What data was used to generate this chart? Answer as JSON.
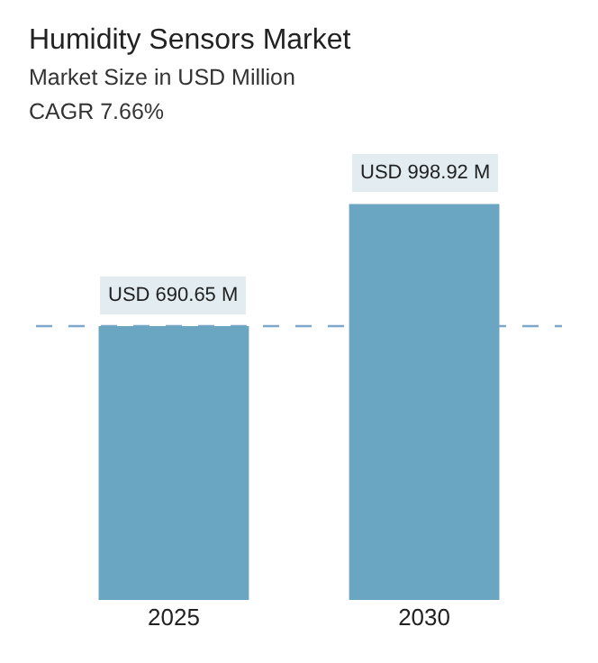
{
  "chart_data": {
    "type": "bar",
    "title": "Humidity Sensors Market",
    "subtitle": "Market Size in USD Million",
    "annotations": [
      "CAGR 7.66%"
    ],
    "categories": [
      "2025",
      "2030"
    ],
    "values": [
      690.65,
      998.92
    ],
    "color": "#6aa6c2",
    "value_labels": [
      "USD 690.65 M",
      "USD 998.92 M"
    ],
    "ref_lines": [
      {
        "axis": "y",
        "value": 690.65,
        "color": "#7fa7cc",
        "line_style": "dashed"
      }
    ],
    "grid": false,
    "legend": false
  }
}
